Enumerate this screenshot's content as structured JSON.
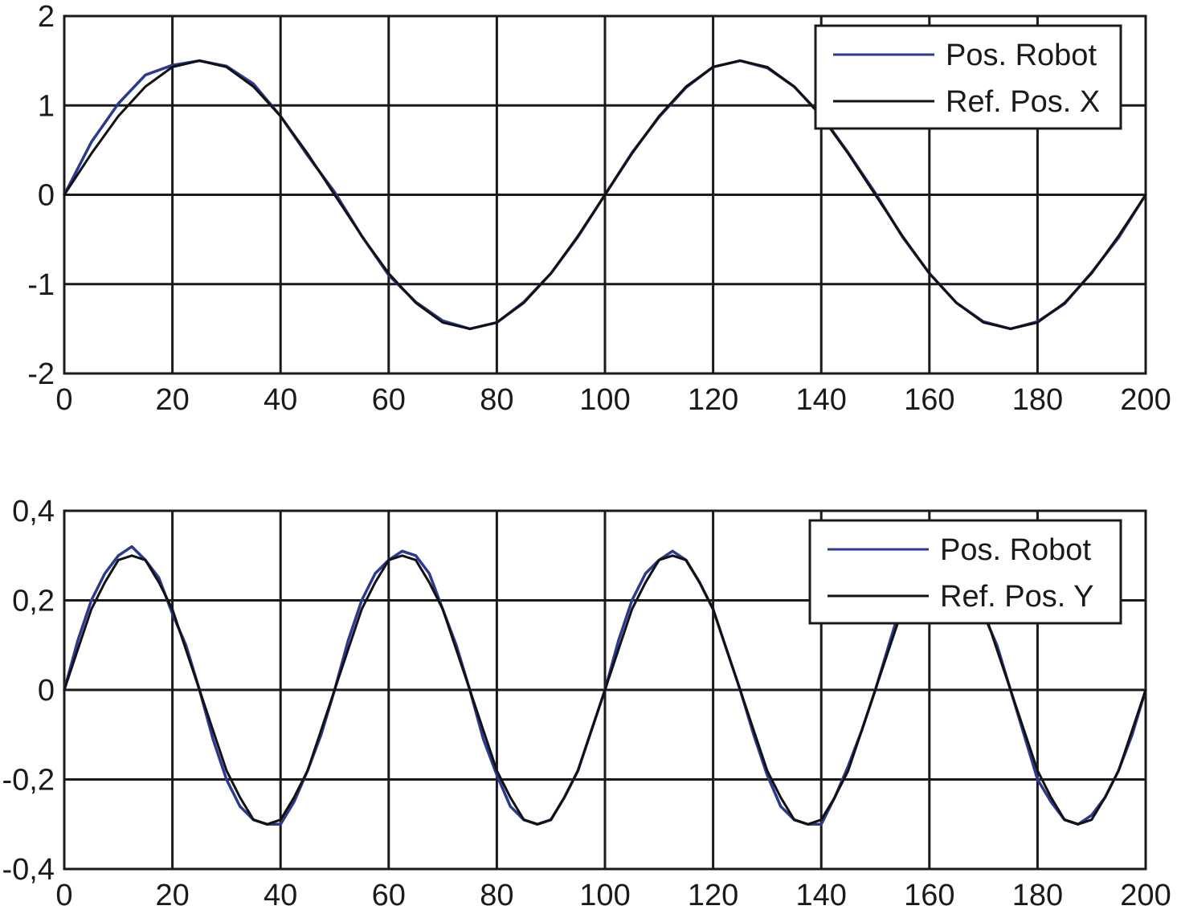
{
  "chart_data": [
    {
      "type": "line",
      "title": "",
      "xlabel": "",
      "ylabel": "",
      "xlim": [
        0,
        200
      ],
      "ylim": [
        -2,
        2
      ],
      "xticks": [
        "0",
        "20",
        "40",
        "60",
        "80",
        "100",
        "120",
        "140",
        "160",
        "180",
        "200"
      ],
      "yticks": [
        "2",
        "1",
        "0",
        "-1",
        "-2"
      ],
      "grid": true,
      "legend_position": "top-right",
      "legend": [
        "Pos. Robot",
        "Ref. Pos. X"
      ],
      "series": [
        {
          "name": "Pos. Robot",
          "color": "#2b3a8c",
          "x": [
            0,
            5,
            10,
            15,
            20,
            25,
            30,
            35,
            40,
            45,
            50,
            55,
            60,
            65,
            70,
            75,
            80,
            85,
            90,
            95,
            100,
            105,
            110,
            115,
            120,
            125,
            130,
            135,
            140,
            145,
            150,
            155,
            160,
            165,
            170,
            175,
            180,
            185,
            190,
            195,
            200
          ],
          "y": [
            0.0,
            0.59,
            1.02,
            1.34,
            1.45,
            1.5,
            1.44,
            1.24,
            0.88,
            0.44,
            0.03,
            -0.46,
            -0.9,
            -1.2,
            -1.41,
            -1.5,
            -1.43,
            -1.2,
            -0.88,
            -0.47,
            0.0,
            0.47,
            0.87,
            1.2,
            1.43,
            1.5,
            1.42,
            1.21,
            0.89,
            0.47,
            0.02,
            -0.47,
            -0.88,
            -1.21,
            -1.42,
            -1.5,
            -1.42,
            -1.22,
            -0.87,
            -0.48,
            0.0
          ]
        },
        {
          "name": "Ref. Pos. X",
          "color": "#111111",
          "x": [
            0,
            5,
            10,
            15,
            20,
            25,
            30,
            35,
            40,
            45,
            50,
            55,
            60,
            65,
            70,
            75,
            80,
            85,
            90,
            95,
            100,
            105,
            110,
            115,
            120,
            125,
            130,
            135,
            140,
            145,
            150,
            155,
            160,
            165,
            170,
            175,
            180,
            185,
            190,
            195,
            200
          ],
          "y": [
            0.0,
            0.46,
            0.88,
            1.21,
            1.43,
            1.5,
            1.43,
            1.21,
            0.88,
            0.46,
            0.0,
            -0.46,
            -0.88,
            -1.21,
            -1.43,
            -1.5,
            -1.43,
            -1.21,
            -0.88,
            -0.46,
            0.0,
            0.46,
            0.88,
            1.21,
            1.43,
            1.5,
            1.43,
            1.21,
            0.88,
            0.46,
            0.0,
            -0.46,
            -0.88,
            -1.21,
            -1.43,
            -1.5,
            -1.43,
            -1.21,
            -0.88,
            -0.46,
            0.0
          ]
        }
      ]
    },
    {
      "type": "line",
      "title": "",
      "xlabel": "",
      "ylabel": "",
      "xlim": [
        0,
        200
      ],
      "ylim": [
        -0.4,
        0.4
      ],
      "xticks": [
        "0",
        "20",
        "40",
        "60",
        "80",
        "100",
        "120",
        "140",
        "160",
        "180",
        "200"
      ],
      "yticks": [
        "0,4",
        "0,2",
        "0",
        "-0,2",
        "-0,4"
      ],
      "grid": true,
      "legend_position": "top-right",
      "legend": [
        "Pos. Robot",
        "Ref. Pos. Y"
      ],
      "series": [
        {
          "name": "Pos. Robot",
          "color": "#2b3a8c",
          "x": [
            0,
            2.5,
            5,
            7.5,
            10,
            12.5,
            15,
            17.5,
            20,
            22.5,
            25,
            27.5,
            30,
            32.5,
            35,
            37.5,
            40,
            42.5,
            45,
            47.5,
            50,
            52.5,
            55,
            57.5,
            60,
            62.5,
            65,
            67.5,
            70,
            72.5,
            75,
            77.5,
            80,
            82.5,
            85,
            87.5,
            90,
            92.5,
            95,
            97.5,
            100,
            102.5,
            105,
            107.5,
            110,
            112.5,
            115,
            117.5,
            120,
            122.5,
            125,
            127.5,
            130,
            132.5,
            135,
            137.5,
            140,
            142.5,
            145,
            147.5,
            150,
            152.5,
            155,
            157.5,
            160,
            162.5,
            165,
            167.5,
            170,
            172.5,
            175,
            177.5,
            180,
            182.5,
            185,
            187.5,
            190,
            192.5,
            195,
            197.5,
            200
          ],
          "y": [
            0.0,
            0.11,
            0.2,
            0.26,
            0.3,
            0.32,
            0.29,
            0.25,
            0.17,
            0.1,
            0.0,
            -0.11,
            -0.2,
            -0.26,
            -0.29,
            -0.3,
            -0.3,
            -0.25,
            -0.18,
            -0.1,
            0.0,
            0.11,
            0.2,
            0.26,
            0.29,
            0.31,
            0.3,
            0.26,
            0.18,
            0.1,
            0.0,
            -0.11,
            -0.19,
            -0.26,
            -0.29,
            -0.3,
            -0.29,
            -0.24,
            -0.18,
            -0.09,
            0.0,
            0.11,
            0.2,
            0.26,
            0.29,
            0.31,
            0.29,
            0.24,
            0.18,
            0.09,
            0.0,
            -0.1,
            -0.19,
            -0.26,
            -0.29,
            -0.3,
            -0.3,
            -0.24,
            -0.17,
            -0.09,
            0.0,
            0.1,
            0.2,
            0.25,
            0.29,
            0.3,
            0.29,
            0.24,
            0.17,
            0.1,
            0.0,
            -0.1,
            -0.2,
            -0.25,
            -0.29,
            -0.3,
            -0.28,
            -0.24,
            -0.18,
            -0.1,
            0.0
          ]
        },
        {
          "name": "Ref. Pos. Y",
          "color": "#111111",
          "x": [
            0,
            2.5,
            5,
            7.5,
            10,
            12.5,
            15,
            17.5,
            20,
            22.5,
            25,
            27.5,
            30,
            32.5,
            35,
            37.5,
            40,
            42.5,
            45,
            47.5,
            50,
            52.5,
            55,
            57.5,
            60,
            62.5,
            65,
            67.5,
            70,
            72.5,
            75,
            77.5,
            80,
            82.5,
            85,
            87.5,
            90,
            92.5,
            95,
            97.5,
            100,
            102.5,
            105,
            107.5,
            110,
            112.5,
            115,
            117.5,
            120,
            122.5,
            125,
            127.5,
            130,
            132.5,
            135,
            137.5,
            140,
            142.5,
            145,
            147.5,
            150,
            152.5,
            155,
            157.5,
            160,
            162.5,
            165,
            167.5,
            170,
            172.5,
            175,
            177.5,
            180,
            182.5,
            185,
            187.5,
            190,
            192.5,
            195,
            197.5,
            200
          ],
          "y": [
            0.0,
            0.09,
            0.18,
            0.24,
            0.29,
            0.3,
            0.29,
            0.24,
            0.18,
            0.09,
            0.0,
            -0.09,
            -0.18,
            -0.24,
            -0.29,
            -0.3,
            -0.29,
            -0.24,
            -0.18,
            -0.09,
            0.0,
            0.09,
            0.18,
            0.24,
            0.29,
            0.3,
            0.29,
            0.24,
            0.18,
            0.09,
            0.0,
            -0.09,
            -0.18,
            -0.24,
            -0.29,
            -0.3,
            -0.29,
            -0.24,
            -0.18,
            -0.09,
            0.0,
            0.09,
            0.18,
            0.24,
            0.29,
            0.3,
            0.29,
            0.24,
            0.18,
            0.09,
            0.0,
            -0.09,
            -0.18,
            -0.24,
            -0.29,
            -0.3,
            -0.29,
            -0.24,
            -0.18,
            -0.09,
            0.0,
            0.09,
            0.18,
            0.24,
            0.29,
            0.3,
            0.29,
            0.24,
            0.18,
            0.09,
            0.0,
            -0.09,
            -0.18,
            -0.24,
            -0.29,
            -0.3,
            -0.29,
            -0.24,
            -0.18,
            -0.09,
            0.0
          ]
        }
      ]
    }
  ]
}
